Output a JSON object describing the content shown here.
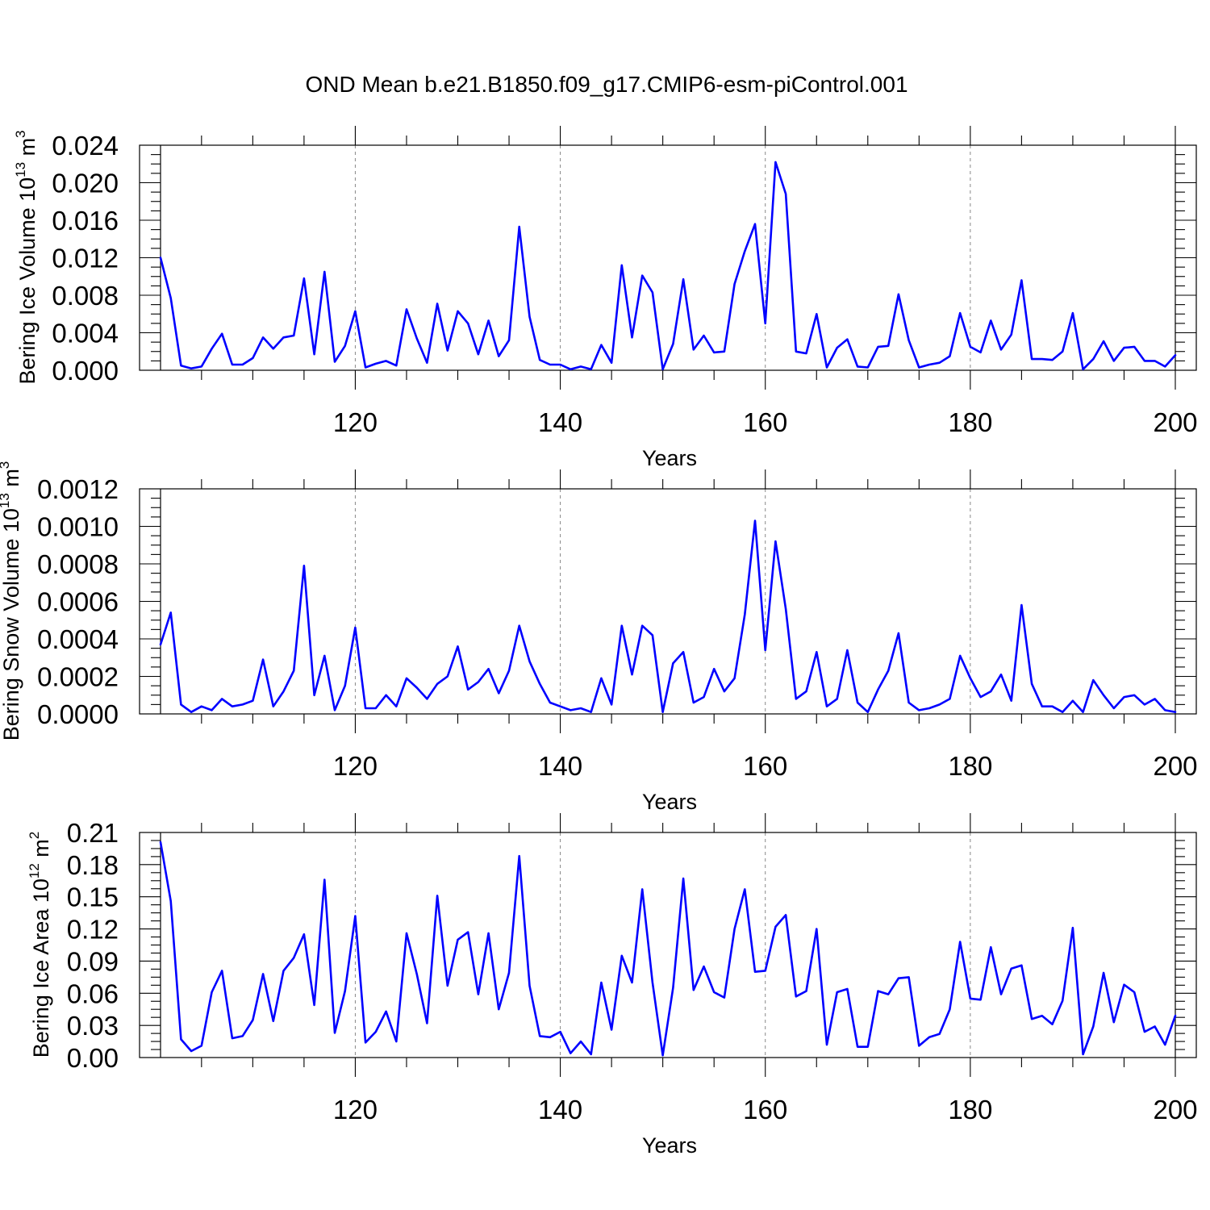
{
  "figure": {
    "title": "OND Mean b.e21.B1850.f09_g17.CMIP6-esm-piControl.001",
    "line_color": "#0000ff"
  },
  "chart_data": [
    {
      "type": "line",
      "title": "",
      "xlabel": "Years",
      "ylabel_main": "Bering Ice Volume 10",
      "ylabel_exp": "13",
      "ylabel_unit": " m",
      "ylabel_unit_exp": "3",
      "xlim": [
        101,
        200
      ],
      "ylim": [
        0,
        0.024
      ],
      "xticks": [
        120,
        140,
        160,
        180,
        200
      ],
      "yticks": [
        0.0,
        0.004,
        0.008,
        0.012,
        0.016,
        0.02,
        0.024
      ],
      "ytick_labels": [
        "0.000",
        "0.004",
        "0.008",
        "0.012",
        "0.016",
        "0.020",
        "0.024"
      ],
      "grid": "vertical dashed at major x ticks",
      "x_start": 101,
      "series": [
        {
          "values": [
            0.012,
            0.0077,
            0.0005,
            0.0002,
            0.0004,
            0.0023,
            0.0039,
            0.0006,
            0.0006,
            0.0013,
            0.0035,
            0.0023,
            0.0035,
            0.0037,
            0.0098,
            0.0017,
            0.0105,
            0.0009,
            0.0026,
            0.0063,
            0.0003,
            0.0007,
            0.001,
            0.0005,
            0.0065,
            0.0034,
            0.0008,
            0.0071,
            0.0021,
            0.0063,
            0.005,
            0.0017,
            0.0053,
            0.0015,
            0.0032,
            0.0153,
            0.0057,
            0.0011,
            0.0006,
            0.0006,
            0.0001,
            0.0004,
            0.0001,
            0.0027,
            0.0008,
            0.0112,
            0.0035,
            0.0101,
            0.0083,
            0.0001,
            0.0028,
            0.0097,
            0.0022,
            0.0037,
            0.0019,
            0.002,
            0.0092,
            0.0127,
            0.0156,
            0.005,
            0.0222,
            0.0188,
            0.002,
            0.0018,
            0.006,
            0.0003,
            0.0024,
            0.0033,
            0.0004,
            0.0003,
            0.0025,
            0.0026,
            0.0081,
            0.0032,
            0.0003,
            0.0006,
            0.0008,
            0.0015,
            0.0061,
            0.0025,
            0.0019,
            0.0053,
            0.0022,
            0.0038,
            0.0096,
            0.0012,
            0.0012,
            0.0011,
            0.002,
            0.0061,
            0.0001,
            0.0012,
            0.0031,
            0.001,
            0.0024,
            0.0025,
            0.001,
            0.001,
            0.0004,
            0.0016
          ]
        }
      ]
    },
    {
      "type": "line",
      "title": "",
      "xlabel": "Years",
      "ylabel_main": "Bering Snow Volume 10",
      "ylabel_exp": "13",
      "ylabel_unit": " m",
      "ylabel_unit_exp": "3",
      "xlim": [
        101,
        200
      ],
      "ylim": [
        0,
        0.0012
      ],
      "xticks": [
        120,
        140,
        160,
        180,
        200
      ],
      "yticks": [
        0.0,
        0.0002,
        0.0004,
        0.0006,
        0.0008,
        0.001,
        0.0012
      ],
      "ytick_labels": [
        "0.0000",
        "0.0002",
        "0.0004",
        "0.0006",
        "0.0008",
        "0.0010",
        "0.0012"
      ],
      "grid": "vertical dashed at major x ticks",
      "x_start": 101,
      "series": [
        {
          "values": [
            0.00037,
            0.00054,
            5e-05,
            1e-05,
            4e-05,
            2e-05,
            8e-05,
            4e-05,
            5e-05,
            7e-05,
            0.00029,
            4e-05,
            0.00012,
            0.00023,
            0.00079,
            0.0001,
            0.00031,
            2e-05,
            0.00015,
            0.00046,
            3e-05,
            3e-05,
            0.0001,
            4e-05,
            0.00019,
            0.00014,
            8e-05,
            0.00016,
            0.0002,
            0.00036,
            0.00013,
            0.00017,
            0.00024,
            0.00011,
            0.00023,
            0.00047,
            0.00028,
            0.00016,
            6e-05,
            4e-05,
            2e-05,
            3e-05,
            1e-05,
            0.00019,
            5e-05,
            0.00047,
            0.00021,
            0.00047,
            0.00042,
            1e-05,
            0.00027,
            0.00033,
            6e-05,
            9e-05,
            0.00024,
            0.00012,
            0.00019,
            0.00053,
            0.00103,
            0.00034,
            0.00092,
            0.00056,
            8e-05,
            0.00012,
            0.00033,
            4e-05,
            8e-05,
            0.00034,
            6e-05,
            1e-05,
            0.00013,
            0.00023,
            0.00043,
            6e-05,
            2e-05,
            3e-05,
            5e-05,
            8e-05,
            0.00031,
            0.00019,
            9e-05,
            0.00012,
            0.00021,
            7e-05,
            0.00058,
            0.00016,
            4e-05,
            4e-05,
            1e-05,
            7e-05,
            1e-05,
            0.00018,
            0.0001,
            3e-05,
            9e-05,
            0.0001,
            5e-05,
            8e-05,
            2e-05,
            1e-05
          ]
        }
      ]
    },
    {
      "type": "line",
      "title": "",
      "xlabel": "Years",
      "ylabel_main": "Bering Ice Area 10",
      "ylabel_exp": "12",
      "ylabel_unit": " m",
      "ylabel_unit_exp": "2",
      "xlim": [
        101,
        200
      ],
      "ylim": [
        0,
        0.21
      ],
      "xticks": [
        120,
        140,
        160,
        180,
        200
      ],
      "yticks": [
        0.0,
        0.03,
        0.06,
        0.09,
        0.12,
        0.15,
        0.18,
        0.21
      ],
      "ytick_labels": [
        "0.00",
        "0.03",
        "0.06",
        "0.09",
        "0.12",
        "0.15",
        "0.18",
        "0.21"
      ],
      "grid": "vertical dashed at major x ticks",
      "x_start": 101,
      "series": [
        {
          "values": [
            0.201,
            0.146,
            0.017,
            0.006,
            0.011,
            0.061,
            0.081,
            0.018,
            0.02,
            0.035,
            0.078,
            0.034,
            0.081,
            0.093,
            0.115,
            0.049,
            0.166,
            0.023,
            0.062,
            0.132,
            0.014,
            0.024,
            0.043,
            0.015,
            0.116,
            0.078,
            0.032,
            0.151,
            0.067,
            0.11,
            0.117,
            0.059,
            0.116,
            0.045,
            0.079,
            0.188,
            0.067,
            0.02,
            0.019,
            0.024,
            0.004,
            0.015,
            0.003,
            0.07,
            0.026,
            0.095,
            0.07,
            0.157,
            0.07,
            0.002,
            0.065,
            0.167,
            0.063,
            0.085,
            0.061,
            0.056,
            0.12,
            0.157,
            0.08,
            0.081,
            0.122,
            0.133,
            0.057,
            0.062,
            0.12,
            0.012,
            0.061,
            0.064,
            0.01,
            0.01,
            0.062,
            0.059,
            0.074,
            0.075,
            0.011,
            0.019,
            0.022,
            0.045,
            0.108,
            0.055,
            0.054,
            0.103,
            0.059,
            0.083,
            0.086,
            0.036,
            0.039,
            0.031,
            0.053,
            0.121,
            0.003,
            0.029,
            0.079,
            0.033,
            0.068,
            0.061,
            0.024,
            0.029,
            0.012,
            0.039
          ]
        }
      ]
    }
  ]
}
